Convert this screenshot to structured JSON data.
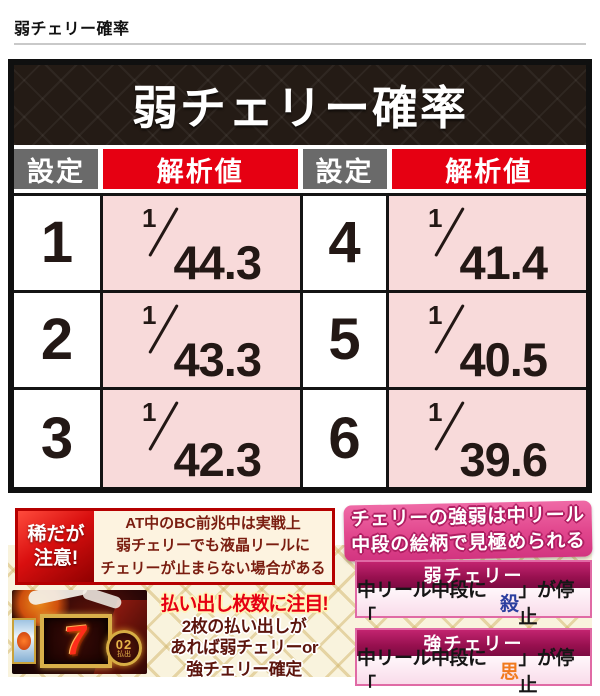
{
  "page": {
    "heading": "弱チェリー確率"
  },
  "table": {
    "title": "弱チェリー確率",
    "col_headers": [
      "設定",
      "解析値",
      "設定",
      "解析値"
    ],
    "numerator": "1",
    "rows": [
      {
        "s_left": "1",
        "v_left": "44.3",
        "s_right": "4",
        "v_right": "41.4"
      },
      {
        "s_left": "2",
        "v_left": "43.3",
        "s_right": "5",
        "v_right": "40.5"
      },
      {
        "s_left": "3",
        "v_left": "42.3",
        "s_right": "6",
        "v_right": "39.6"
      }
    ]
  },
  "caution": {
    "badge_line1": "稀だが",
    "badge_line2": "注意!",
    "line1": "AT中のBC前兆中は実戦上",
    "line2": "弱チェリーでも液晶リールに",
    "line3": "チェリーが止まらない場合がある"
  },
  "payout_note": {
    "headline": "払い出し枚数に注目!",
    "line1": "2枚の払い出しが",
    "line2": "あれば弱チェリーor",
    "line3": "強チェリー確定",
    "reel_symbol": "7",
    "medal_number": "02",
    "medal_label": "払出"
  },
  "discern": {
    "banner_line1": "チェリーの強弱は中リール",
    "banner_line2": "中段の絵柄で見極められる",
    "weak": {
      "title": "弱チェリー",
      "text_prefix": "中リール中段に「",
      "char": "殺",
      "char_color": "#2b3f9f",
      "text_suffix": "」が停止"
    },
    "strong": {
      "title": "強チェリー",
      "text_prefix": "中リール中段に「",
      "char": "思",
      "char_color": "#f17a1e",
      "text_suffix": "」が停止"
    }
  },
  "colors": {
    "header_red": "#e60012",
    "header_gray": "#6a6a6a",
    "value_pink": "#f8dada",
    "banner_pink": "#e1468d",
    "box_magenta": "#97104f",
    "caution_red": "#b50000",
    "pattern_cream": "#f9f3dd"
  }
}
